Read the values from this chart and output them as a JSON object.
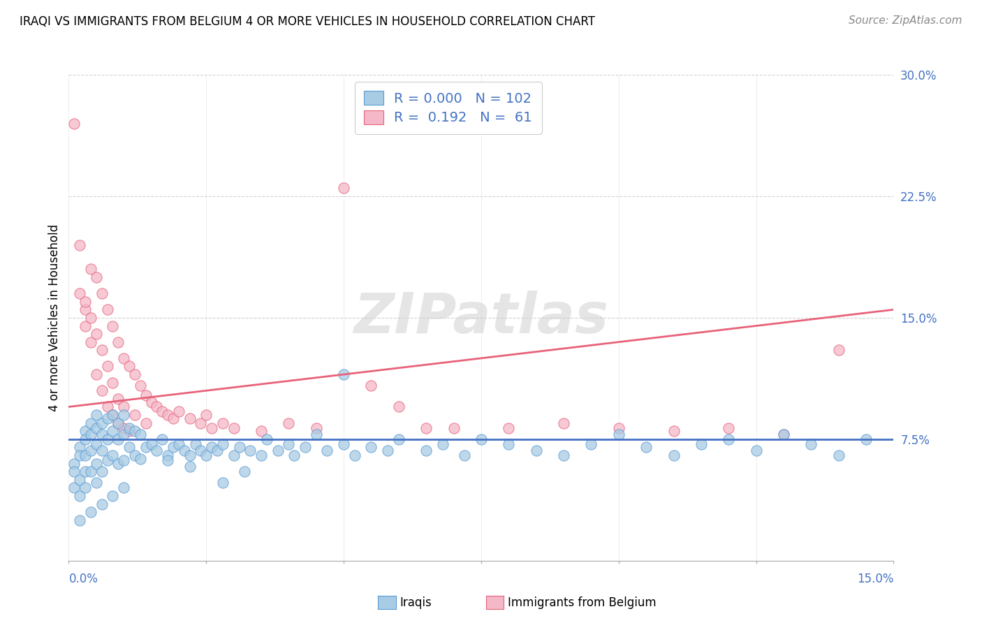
{
  "title": "IRAQI VS IMMIGRANTS FROM BELGIUM 4 OR MORE VEHICLES IN HOUSEHOLD CORRELATION CHART",
  "source": "Source: ZipAtlas.com",
  "ylabel": "4 or more Vehicles in Household",
  "R_blue": 0.0,
  "N_blue": 102,
  "R_pink": 0.192,
  "N_pink": 61,
  "blue_color": "#a8cce4",
  "pink_color": "#f4b8c8",
  "blue_edge_color": "#5b9bd5",
  "pink_edge_color": "#e8627a",
  "blue_line_color": "#4472c4",
  "pink_line_color": "#e8627a",
  "watermark": "ZIPatlas",
  "xlim": [
    0.0,
    0.15
  ],
  "ylim": [
    0.0,
    0.3
  ],
  "blue_line_intercept": 0.075,
  "blue_line_slope": 0.0,
  "pink_line_intercept": 0.095,
  "pink_line_slope": 0.4,
  "blue_scatter_x": [
    0.001,
    0.001,
    0.001,
    0.002,
    0.002,
    0.002,
    0.002,
    0.003,
    0.003,
    0.003,
    0.003,
    0.003,
    0.004,
    0.004,
    0.004,
    0.004,
    0.005,
    0.005,
    0.005,
    0.005,
    0.005,
    0.006,
    0.006,
    0.006,
    0.006,
    0.007,
    0.007,
    0.007,
    0.008,
    0.008,
    0.008,
    0.009,
    0.009,
    0.009,
    0.01,
    0.01,
    0.01,
    0.011,
    0.011,
    0.012,
    0.012,
    0.013,
    0.013,
    0.014,
    0.015,
    0.016,
    0.017,
    0.018,
    0.019,
    0.02,
    0.021,
    0.022,
    0.023,
    0.024,
    0.025,
    0.026,
    0.027,
    0.028,
    0.03,
    0.031,
    0.033,
    0.035,
    0.036,
    0.038,
    0.04,
    0.041,
    0.043,
    0.045,
    0.047,
    0.05,
    0.052,
    0.055,
    0.058,
    0.06,
    0.065,
    0.068,
    0.072,
    0.075,
    0.08,
    0.085,
    0.09,
    0.095,
    0.1,
    0.105,
    0.11,
    0.115,
    0.12,
    0.125,
    0.13,
    0.135,
    0.14,
    0.145,
    0.05,
    0.032,
    0.028,
    0.022,
    0.018,
    0.01,
    0.008,
    0.006,
    0.004,
    0.002
  ],
  "blue_scatter_y": [
    0.06,
    0.055,
    0.045,
    0.07,
    0.065,
    0.05,
    0.04,
    0.08,
    0.075,
    0.065,
    0.055,
    0.045,
    0.085,
    0.078,
    0.068,
    0.055,
    0.09,
    0.082,
    0.072,
    0.06,
    0.048,
    0.085,
    0.078,
    0.068,
    0.055,
    0.088,
    0.075,
    0.062,
    0.09,
    0.08,
    0.065,
    0.085,
    0.075,
    0.06,
    0.09,
    0.078,
    0.062,
    0.082,
    0.07,
    0.08,
    0.065,
    0.078,
    0.063,
    0.07,
    0.072,
    0.068,
    0.075,
    0.065,
    0.07,
    0.072,
    0.068,
    0.065,
    0.072,
    0.068,
    0.065,
    0.07,
    0.068,
    0.072,
    0.065,
    0.07,
    0.068,
    0.065,
    0.075,
    0.068,
    0.072,
    0.065,
    0.07,
    0.078,
    0.068,
    0.072,
    0.065,
    0.07,
    0.068,
    0.075,
    0.068,
    0.072,
    0.065,
    0.075,
    0.072,
    0.068,
    0.065,
    0.072,
    0.078,
    0.07,
    0.065,
    0.072,
    0.075,
    0.068,
    0.078,
    0.072,
    0.065,
    0.075,
    0.115,
    0.055,
    0.048,
    0.058,
    0.062,
    0.045,
    0.04,
    0.035,
    0.03,
    0.025
  ],
  "pink_scatter_x": [
    0.001,
    0.002,
    0.002,
    0.003,
    0.003,
    0.004,
    0.004,
    0.005,
    0.005,
    0.006,
    0.006,
    0.007,
    0.007,
    0.008,
    0.008,
    0.009,
    0.009,
    0.01,
    0.01,
    0.011,
    0.011,
    0.012,
    0.013,
    0.014,
    0.015,
    0.016,
    0.017,
    0.018,
    0.019,
    0.02,
    0.022,
    0.024,
    0.025,
    0.026,
    0.028,
    0.03,
    0.035,
    0.04,
    0.045,
    0.05,
    0.055,
    0.06,
    0.065,
    0.07,
    0.08,
    0.09,
    0.1,
    0.11,
    0.12,
    0.13,
    0.14,
    0.003,
    0.004,
    0.005,
    0.006,
    0.007,
    0.008,
    0.009,
    0.01,
    0.012,
    0.014
  ],
  "pink_scatter_y": [
    0.27,
    0.195,
    0.165,
    0.155,
    0.145,
    0.18,
    0.135,
    0.175,
    0.115,
    0.165,
    0.105,
    0.155,
    0.095,
    0.145,
    0.09,
    0.135,
    0.085,
    0.125,
    0.082,
    0.12,
    0.08,
    0.115,
    0.108,
    0.102,
    0.098,
    0.095,
    0.092,
    0.09,
    0.088,
    0.092,
    0.088,
    0.085,
    0.09,
    0.082,
    0.085,
    0.082,
    0.08,
    0.085,
    0.082,
    0.23,
    0.108,
    0.095,
    0.082,
    0.082,
    0.082,
    0.085,
    0.082,
    0.08,
    0.082,
    0.078,
    0.13,
    0.16,
    0.15,
    0.14,
    0.13,
    0.12,
    0.11,
    0.1,
    0.095,
    0.09,
    0.085
  ]
}
